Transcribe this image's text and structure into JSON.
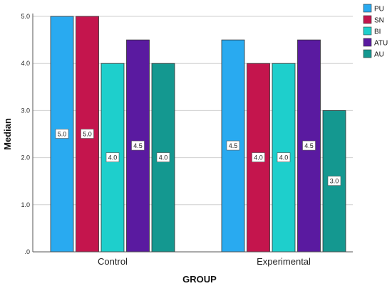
{
  "chart_data": {
    "type": "bar",
    "categories": [
      "Control",
      "Experimental"
    ],
    "series": [
      {
        "name": "PU",
        "values": [
          5.0,
          4.5
        ]
      },
      {
        "name": "SN",
        "values": [
          5.0,
          4.0
        ]
      },
      {
        "name": "BI",
        "values": [
          4.0,
          4.0
        ]
      },
      {
        "name": "ATU",
        "values": [
          4.5,
          4.5
        ]
      },
      {
        "name": "AU",
        "values": [
          4.0,
          3.0
        ]
      }
    ],
    "data_labels": [
      [
        "5.0",
        "4.5"
      ],
      [
        "5.0",
        "4.0"
      ],
      [
        "4.0",
        "4.0"
      ],
      [
        "4.5",
        "4.5"
      ],
      [
        "4.0",
        "3.0"
      ]
    ],
    "colors": [
      "#29aaf0",
      "#c4154d",
      "#1ecfcc",
      "#5a1aa0",
      "#149890"
    ],
    "xlabel": "GROUP",
    "ylabel": "Median",
    "ylim": [
      0,
      5.0
    ],
    "yticks": [
      ".0",
      "1.0",
      "2.0",
      "3.0",
      "4.0",
      "5.0"
    ],
    "grid": true,
    "legend_position": "top-right"
  }
}
